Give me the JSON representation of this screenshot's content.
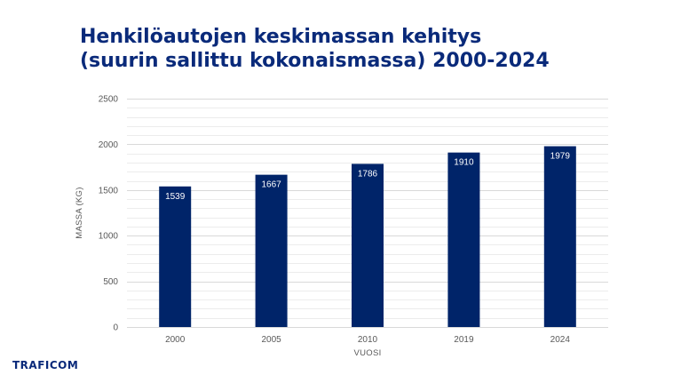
{
  "title_line1": "Henkilöautojen keskimassan kehitys",
  "title_line2": "(suurin sallittu kokonaismassa) 2000-2024",
  "logo_text": "TRAFICOM",
  "chart_data": {
    "type": "bar",
    "categories": [
      "2000",
      "2005",
      "2010",
      "2019",
      "2024"
    ],
    "values": [
      1539,
      1667,
      1786,
      1910,
      1979
    ],
    "data_labels": [
      "1539",
      "1667",
      "1786",
      "1910",
      "1979"
    ],
    "xlabel": "VUOSI",
    "ylabel": "MASSA (KG)",
    "ylim": [
      0,
      2500
    ],
    "yticks": [
      0,
      500,
      1000,
      1500,
      2000,
      2500
    ],
    "grid": true,
    "minor_grid_step": 100,
    "legend": "none",
    "bar_color": "#002469",
    "gridline_color": "#d9d9d9"
  }
}
